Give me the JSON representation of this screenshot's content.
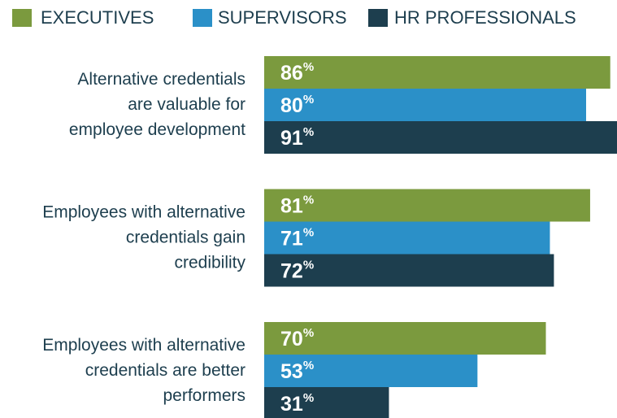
{
  "chart_data": {
    "type": "bar",
    "orientation": "horizontal",
    "categories": [
      "Alternative credentials\nare valuable for\nemployee development",
      "Employees with alternative\ncredentials gain\ncredibility",
      "Employees with alternative\ncredentials are better\nperformers"
    ],
    "series": [
      {
        "name": "EXECUTIVES",
        "color": "#7b9a3e",
        "values": [
          86,
          81,
          70
        ],
        "value_labels": [
          "86%",
          "81%",
          "70%"
        ]
      },
      {
        "name": "SUPERVISORS",
        "color": "#2b90c8",
        "values": [
          80,
          71,
          53
        ],
        "value_labels": [
          "80%",
          "71%",
          "53%"
        ]
      },
      {
        "name": "HR PROFESSIONALS",
        "color": "#1d3e4e",
        "values": [
          91,
          72,
          31
        ],
        "value_labels": [
          "91%",
          "72%",
          "31%"
        ]
      }
    ],
    "xlim": [
      0,
      100
    ]
  }
}
